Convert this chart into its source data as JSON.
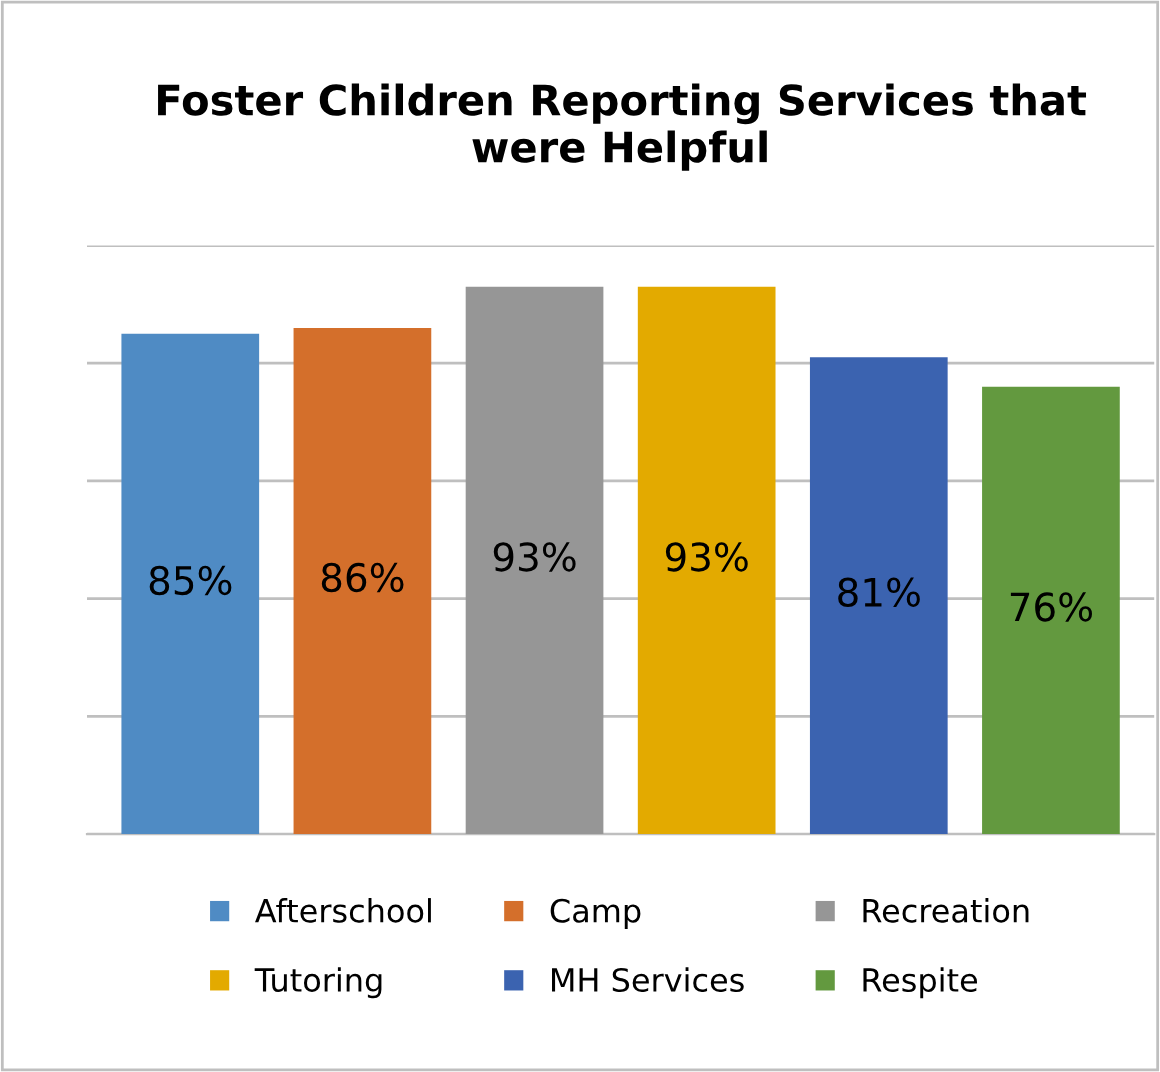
{
  "chart_data": {
    "type": "bar",
    "title": "Foster Children Reporting Services that\nwere Helpful",
    "categories": [
      null,
      null,
      null,
      null,
      null,
      null
    ],
    "stacked": true,
    "series": [
      {
        "name": "Afterschool",
        "color": "#4f8bc4",
        "values": [
          85,
          null,
          null,
          null,
          null,
          null
        ],
        "value_labels": [
          "85%",
          null,
          null,
          null,
          null,
          null
        ]
      },
      {
        "name": "Camp",
        "color": "#d46f2b",
        "values": [
          null,
          86,
          null,
          null,
          null,
          null
        ],
        "value_labels": [
          null,
          "86%",
          null,
          null,
          null,
          null
        ]
      },
      {
        "name": "Recreation",
        "color": "#969696",
        "values": [
          null,
          null,
          93,
          null,
          null,
          null
        ],
        "value_labels": [
          null,
          null,
          "93%",
          null,
          null,
          null
        ]
      },
      {
        "name": "Tutoring",
        "color": "#e3aa00",
        "values": [
          null,
          null,
          null,
          93,
          null,
          null
        ],
        "value_labels": [
          null,
          null,
          null,
          "93%",
          null,
          null
        ]
      },
      {
        "name": "MH Services",
        "color": "#3b63b0",
        "values": [
          null,
          null,
          null,
          null,
          81,
          null
        ],
        "value_labels": [
          null,
          null,
          null,
          null,
          "81%",
          null
        ]
      },
      {
        "name": "Respite",
        "color": "#63993f",
        "values": [
          null,
          null,
          null,
          null,
          null,
          76
        ],
        "value_labels": [
          null,
          null,
          null,
          null,
          null,
          "76%"
        ]
      }
    ],
    "ylim": [
      0,
      100
    ],
    "yticks": [
      {
        "value": 0,
        "label": null
      },
      {
        "value": 20,
        "label": null
      },
      {
        "value": 40,
        "label": null
      },
      {
        "value": 60,
        "label": null
      },
      {
        "value": 80,
        "label": null
      },
      {
        "value": 100,
        "label": null
      }
    ],
    "grid": "y",
    "legend": "bottom"
  }
}
